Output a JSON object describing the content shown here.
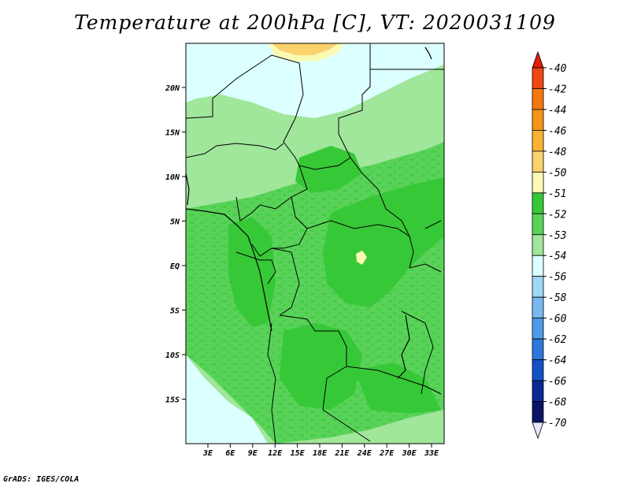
{
  "title": "Temperature at 200hPa [C], VT: 2020031109",
  "footer": "GrADS: IGES/COLA",
  "map": {
    "lat_labels": [
      "20N",
      "15N",
      "10N",
      "5N",
      "EQ",
      "5S",
      "10S",
      "15S"
    ],
    "lon_labels": [
      "3E",
      "6E",
      "9E",
      "12E",
      "15E",
      "18E",
      "21E",
      "24E",
      "27E",
      "30E",
      "33E"
    ]
  },
  "colorbar": {
    "levels": [
      "-40",
      "-42",
      "-44",
      "-46",
      "-48",
      "-50",
      "-51",
      "-52",
      "-53",
      "-54",
      "-56",
      "-58",
      "-60",
      "-62",
      "-64",
      "-66",
      "-68",
      "-70"
    ],
    "colors": [
      "#e11e0a",
      "#f04614",
      "#f5780f",
      "#f59619",
      "#fab432",
      "#fad26e",
      "#fafab4",
      "#37c837",
      "#5ad25a",
      "#a0e69b",
      "#dcffff",
      "#a0d7f5",
      "#78b9f0",
      "#4b9be6",
      "#2d78dc",
      "#1450c8",
      "#0a2896",
      "#0a1464",
      "#e6e6fa"
    ]
  }
}
